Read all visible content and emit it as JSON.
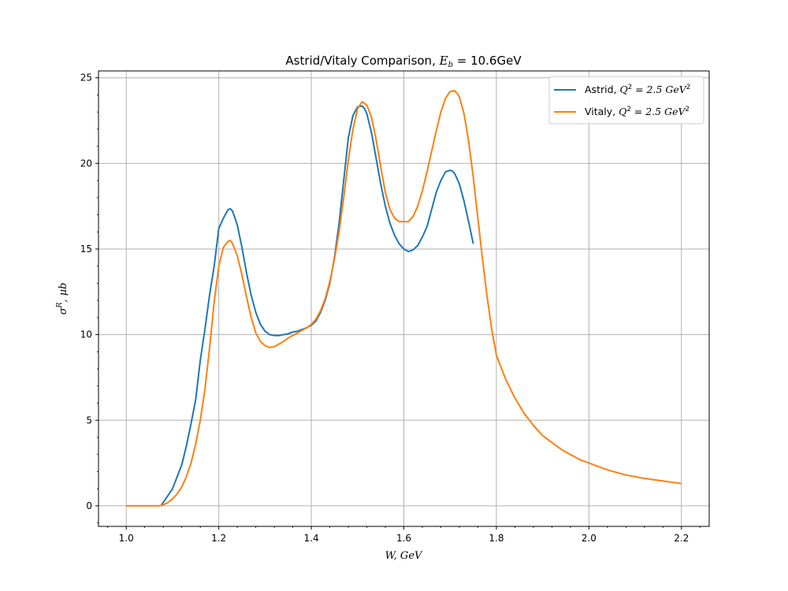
{
  "chart_data": {
    "type": "line",
    "title": "Astrid/Vitaly Comparison, E_b = 10.6GeV",
    "title_parts": {
      "prefix": "Astrid/Vitaly Comparison, ",
      "math": "E",
      "sub": "b",
      "suffix": " = 10.6GeV"
    },
    "xlabel": "W, GeV",
    "ylabel": "σR, μb",
    "ylabel_parts": {
      "sigma": "σ",
      "sup": "R",
      "rest": ", μb"
    },
    "xlim": [
      0.94,
      2.26
    ],
    "ylim": [
      -1.2,
      25.4
    ],
    "x_ticks": [
      1.0,
      1.2,
      1.4,
      1.6,
      1.8,
      2.0,
      2.2
    ],
    "x_tick_labels": [
      "1.0",
      "1.2",
      "1.4",
      "1.6",
      "1.8",
      "2.0",
      "2.2"
    ],
    "y_ticks": [
      0,
      5,
      10,
      15,
      20,
      25
    ],
    "y_tick_labels": [
      "0",
      "5",
      "10",
      "15",
      "20",
      "25"
    ],
    "grid": true,
    "legend_position": "top-right",
    "series": [
      {
        "name": "Astrid, Q^2 = 2.5 GeV^2",
        "label_parts": {
          "prefix": "Astrid, ",
          "math": "Q",
          "sup": "2",
          "mid": " = 2.5 GeV",
          "sup2": "2"
        },
        "color": "#1f77b4",
        "x": [
          1.075,
          1.08,
          1.09,
          1.1,
          1.11,
          1.12,
          1.13,
          1.14,
          1.15,
          1.16,
          1.17,
          1.18,
          1.19,
          1.2,
          1.21,
          1.22,
          1.225,
          1.23,
          1.24,
          1.25,
          1.26,
          1.27,
          1.28,
          1.29,
          1.3,
          1.31,
          1.32,
          1.33,
          1.34,
          1.35,
          1.36,
          1.37,
          1.38,
          1.39,
          1.4,
          1.41,
          1.42,
          1.43,
          1.44,
          1.45,
          1.46,
          1.47,
          1.48,
          1.49,
          1.5,
          1.51,
          1.515,
          1.52,
          1.53,
          1.54,
          1.55,
          1.56,
          1.57,
          1.58,
          1.59,
          1.6,
          1.61,
          1.62,
          1.63,
          1.64,
          1.65,
          1.66,
          1.67,
          1.68,
          1.69,
          1.7,
          1.705,
          1.71,
          1.72,
          1.73,
          1.74,
          1.75
        ],
        "y": [
          0.0,
          0.2,
          0.6,
          1.0,
          1.7,
          2.4,
          3.5,
          4.8,
          6.2,
          8.5,
          10.3,
          12.3,
          14.0,
          16.2,
          16.8,
          17.3,
          17.35,
          17.2,
          16.4,
          15.1,
          13.6,
          12.3,
          11.3,
          10.6,
          10.2,
          10.0,
          9.95,
          9.95,
          10.0,
          10.05,
          10.15,
          10.2,
          10.3,
          10.4,
          10.55,
          10.8,
          11.3,
          12.0,
          13.0,
          14.5,
          16.5,
          19.0,
          21.5,
          22.8,
          23.3,
          23.35,
          23.2,
          22.9,
          21.8,
          20.3,
          18.8,
          17.5,
          16.5,
          15.8,
          15.3,
          15.0,
          14.85,
          14.95,
          15.2,
          15.7,
          16.3,
          17.3,
          18.3,
          19.0,
          19.5,
          19.6,
          19.55,
          19.4,
          18.8,
          17.8,
          16.6,
          15.3
        ]
      },
      {
        "name": "Vitaly, Q^2 = 2.5 GeV^2",
        "label_parts": {
          "prefix": "Vitaly, ",
          "math": "Q",
          "sup": "2",
          "mid": " = 2.5 GeV",
          "sup2": "2"
        },
        "color": "#ff7f0e",
        "x": [
          1.0,
          1.02,
          1.04,
          1.06,
          1.07,
          1.08,
          1.09,
          1.1,
          1.11,
          1.12,
          1.13,
          1.14,
          1.15,
          1.16,
          1.17,
          1.18,
          1.19,
          1.2,
          1.21,
          1.22,
          1.225,
          1.23,
          1.24,
          1.25,
          1.26,
          1.27,
          1.28,
          1.29,
          1.3,
          1.31,
          1.32,
          1.33,
          1.34,
          1.35,
          1.36,
          1.37,
          1.38,
          1.39,
          1.4,
          1.41,
          1.42,
          1.43,
          1.44,
          1.45,
          1.46,
          1.47,
          1.48,
          1.49,
          1.5,
          1.51,
          1.52,
          1.53,
          1.54,
          1.55,
          1.56,
          1.57,
          1.58,
          1.59,
          1.6,
          1.61,
          1.62,
          1.63,
          1.64,
          1.65,
          1.66,
          1.67,
          1.68,
          1.69,
          1.7,
          1.71,
          1.72,
          1.73,
          1.74,
          1.75,
          1.76,
          1.77,
          1.78,
          1.79,
          1.8,
          1.82,
          1.84,
          1.86,
          1.88,
          1.9,
          1.92,
          1.94,
          1.96,
          1.98,
          2.0,
          2.04,
          2.08,
          2.12,
          2.16,
          2.2
        ],
        "y": [
          0.0,
          0.0,
          0.0,
          0.0,
          0.0,
          0.05,
          0.2,
          0.4,
          0.7,
          1.1,
          1.7,
          2.5,
          3.6,
          5.0,
          6.8,
          9.2,
          11.9,
          14.0,
          15.1,
          15.45,
          15.5,
          15.3,
          14.6,
          13.5,
          12.2,
          11.0,
          10.1,
          9.6,
          9.35,
          9.25,
          9.3,
          9.45,
          9.6,
          9.8,
          9.95,
          10.1,
          10.25,
          10.4,
          10.6,
          10.9,
          11.4,
          12.1,
          13.1,
          14.4,
          16.0,
          18.0,
          20.2,
          22.0,
          23.2,
          23.6,
          23.4,
          22.7,
          21.4,
          19.8,
          18.3,
          17.3,
          16.8,
          16.6,
          16.6,
          16.6,
          16.9,
          17.5,
          18.4,
          19.5,
          20.7,
          21.9,
          23.0,
          23.8,
          24.2,
          24.25,
          23.9,
          22.9,
          21.3,
          19.2,
          16.8,
          14.4,
          12.2,
          10.3,
          8.8,
          7.4,
          6.3,
          5.4,
          4.7,
          4.1,
          3.7,
          3.3,
          3.0,
          2.7,
          2.5,
          2.1,
          1.8,
          1.6,
          1.45,
          1.3
        ]
      }
    ]
  },
  "colors": {
    "grid": "#b0b0b0",
    "axes": "#000000",
    "background": "#ffffff"
  }
}
